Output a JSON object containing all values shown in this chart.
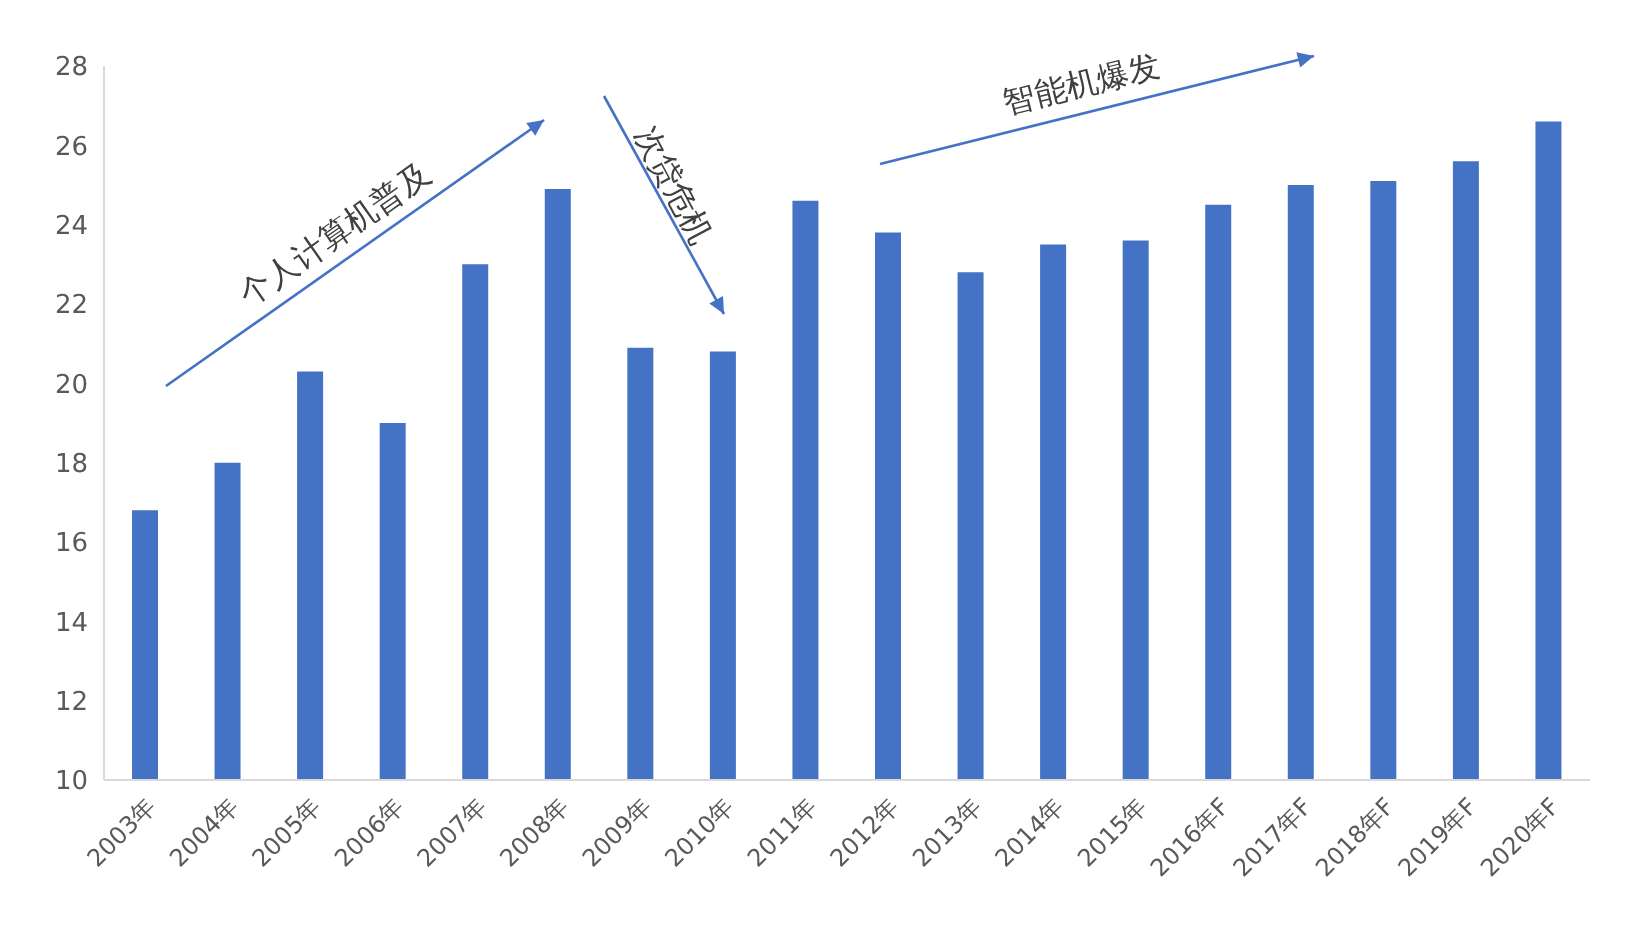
{
  "chart_data": {
    "type": "bar",
    "categories": [
      "2003年",
      "2004年",
      "2005年",
      "2006年",
      "2007年",
      "2008年",
      "2009年",
      "2010年",
      "2011年",
      "2012年",
      "2013年",
      "2014年",
      "2015年",
      "2016年F",
      "2017年F",
      "2018年F",
      "2019年F",
      "2020年F"
    ],
    "values": [
      16.8,
      18.0,
      20.3,
      19.0,
      23.0,
      24.9,
      20.9,
      20.8,
      24.6,
      23.8,
      22.8,
      23.5,
      23.6,
      24.5,
      25.0,
      25.1,
      25.6,
      26.6
    ],
    "color": "#4472c4",
    "ylim": [
      10,
      28
    ],
    "yticks": [
      10,
      12,
      14,
      16,
      18,
      20,
      22,
      24,
      26,
      28
    ],
    "grid": false,
    "legend": false,
    "annotations": [
      "个人计算机普及",
      "次贷危机",
      "智能机爆发"
    ]
  }
}
